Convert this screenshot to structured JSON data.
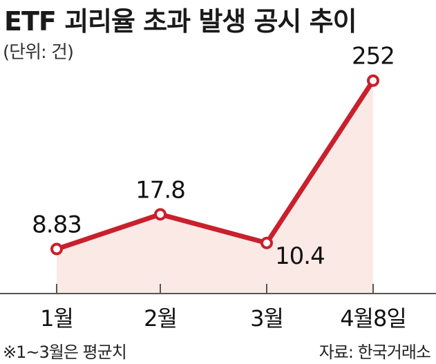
{
  "title": "ETF 괴리율 초과 발생 공시 추이",
  "unit_label": "(단위: 건)",
  "note": "※1~3월은 평균치",
  "source": "자료: 한국거래소",
  "colors": {
    "line": "#c8202c",
    "area_fill": "#fbe9e6",
    "point_fill": "#ffffff",
    "axis": "#555555"
  },
  "chart_data": {
    "type": "line",
    "title": "ETF 괴리율 초과 발생 공시 추이",
    "ylabel": "(단위: 건)",
    "categories": [
      "1월",
      "2월",
      "3월",
      "4월8일"
    ],
    "values": [
      8.83,
      17.8,
      10.4,
      252
    ],
    "value_labels": [
      "8.83",
      "17.8",
      "10.4",
      "252"
    ],
    "grid": false,
    "area_fill": true
  }
}
